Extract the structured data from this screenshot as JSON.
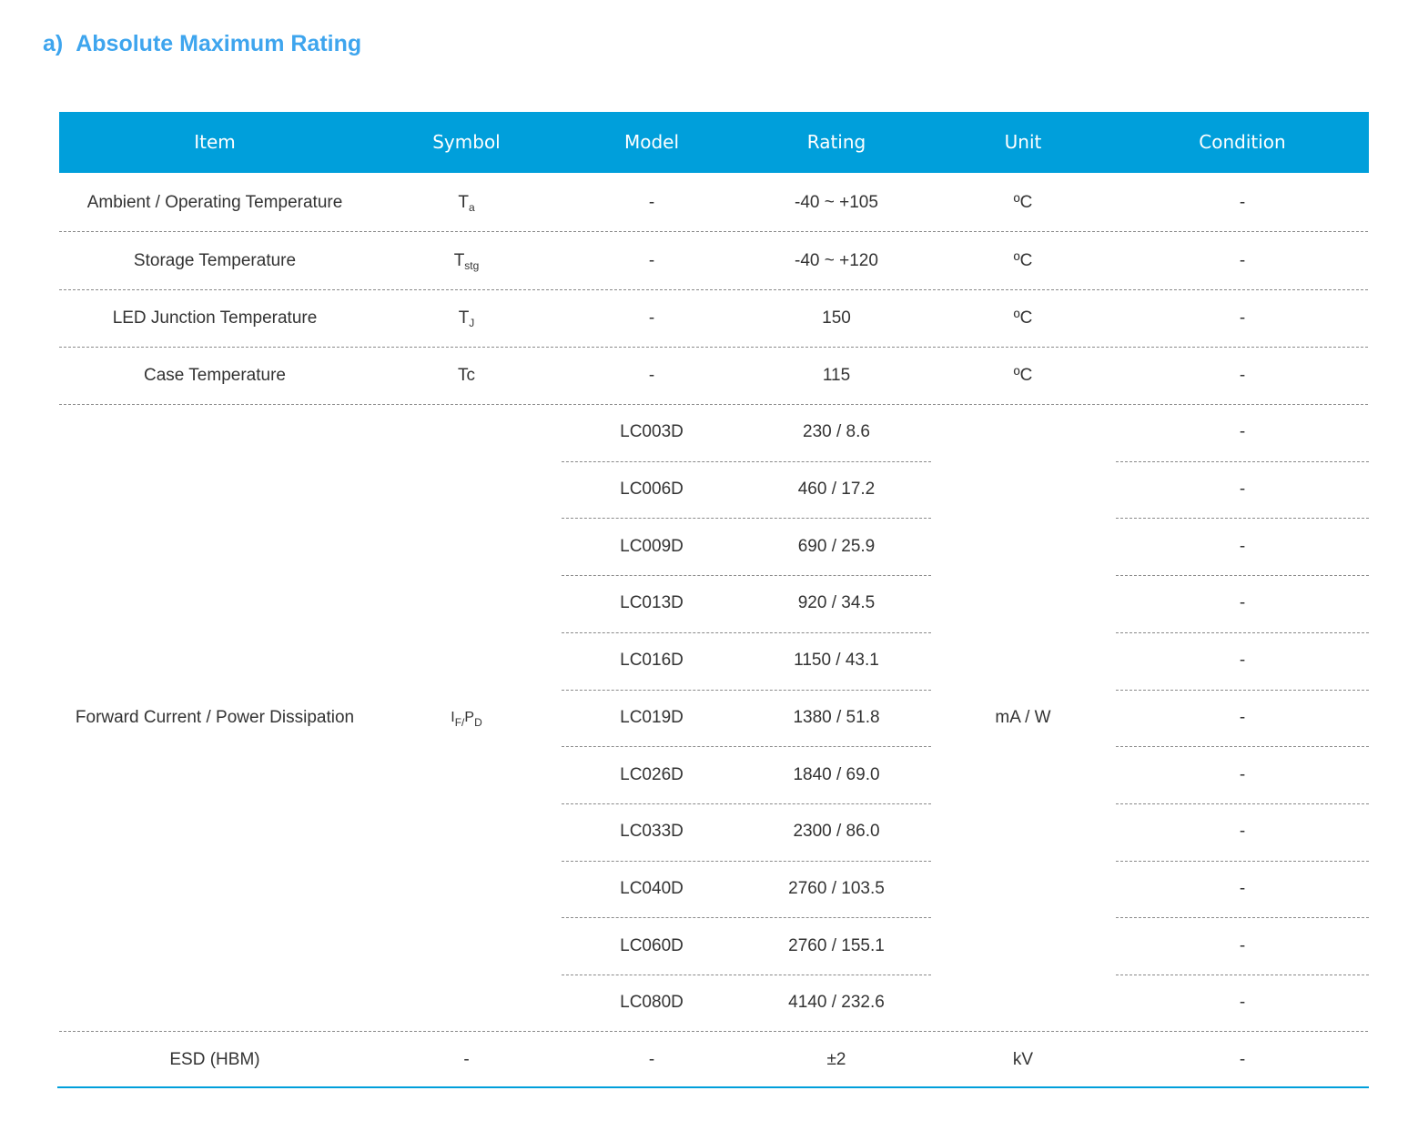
{
  "section": {
    "prefix": "a)",
    "title": "Absolute Maximum Rating"
  },
  "colors": {
    "heading": "#3ea5ee",
    "header_bg": "#009fdb",
    "header_text": "#ffffff",
    "body_text": "#333333"
  },
  "columns": [
    "Item",
    "Symbol",
    "Model",
    "Rating",
    "Unit",
    "Condition"
  ],
  "rows": [
    {
      "item": "Ambient / Operating Temperature",
      "sym_main": "T",
      "sym_sub": "a",
      "model": "-",
      "rating": "-40 ~ +105",
      "unit": "ºC",
      "condition": "-"
    },
    {
      "item": "Storage Temperature",
      "sym_main": "T",
      "sym_sub": "stg",
      "model": "-",
      "rating": "-40 ~ +120",
      "unit": "ºC",
      "condition": "-"
    },
    {
      "item": "LED Junction Temperature",
      "sym_main": "T",
      "sym_sub": "J",
      "model": "-",
      "rating": "150",
      "unit": "ºC",
      "condition": "-"
    },
    {
      "item": "Case Temperature",
      "sym_main": "Tc",
      "sym_sub": "",
      "model": "-",
      "rating": "115",
      "unit": "ºC",
      "condition": "-"
    }
  ],
  "forward": {
    "item": "Forward Current / Power Dissipation",
    "sym_i": "I",
    "sym_f": "F",
    "sym_sep": " / ",
    "sym_p": "P",
    "sym_d": "D",
    "unit": "mA / W",
    "models": [
      {
        "model": "LC003D",
        "rating": "230 / 8.6",
        "condition": "-"
      },
      {
        "model": "LC006D",
        "rating": "460 / 17.2",
        "condition": "-"
      },
      {
        "model": "LC009D",
        "rating": "690 / 25.9",
        "condition": "-"
      },
      {
        "model": "LC013D",
        "rating": "920 / 34.5",
        "condition": "-"
      },
      {
        "model": "LC016D",
        "rating": "1150 / 43.1",
        "condition": "-"
      },
      {
        "model": "LC019D",
        "rating": "1380 / 51.8",
        "condition": "-"
      },
      {
        "model": "LC026D",
        "rating": "1840 / 69.0",
        "condition": "-"
      },
      {
        "model": "LC033D",
        "rating": "2300 / 86.0",
        "condition": "-"
      },
      {
        "model": "LC040D",
        "rating": "2760 / 103.5",
        "condition": "-"
      },
      {
        "model": "LC060D",
        "rating": "2760 / 155.1",
        "condition": "-"
      },
      {
        "model": "LC080D",
        "rating": "4140 / 232.6",
        "condition": "-"
      }
    ]
  },
  "esd": {
    "item": "ESD (HBM)",
    "symbol": "-",
    "model": "-",
    "rating": "±2",
    "unit": "kV",
    "condition": "-"
  }
}
